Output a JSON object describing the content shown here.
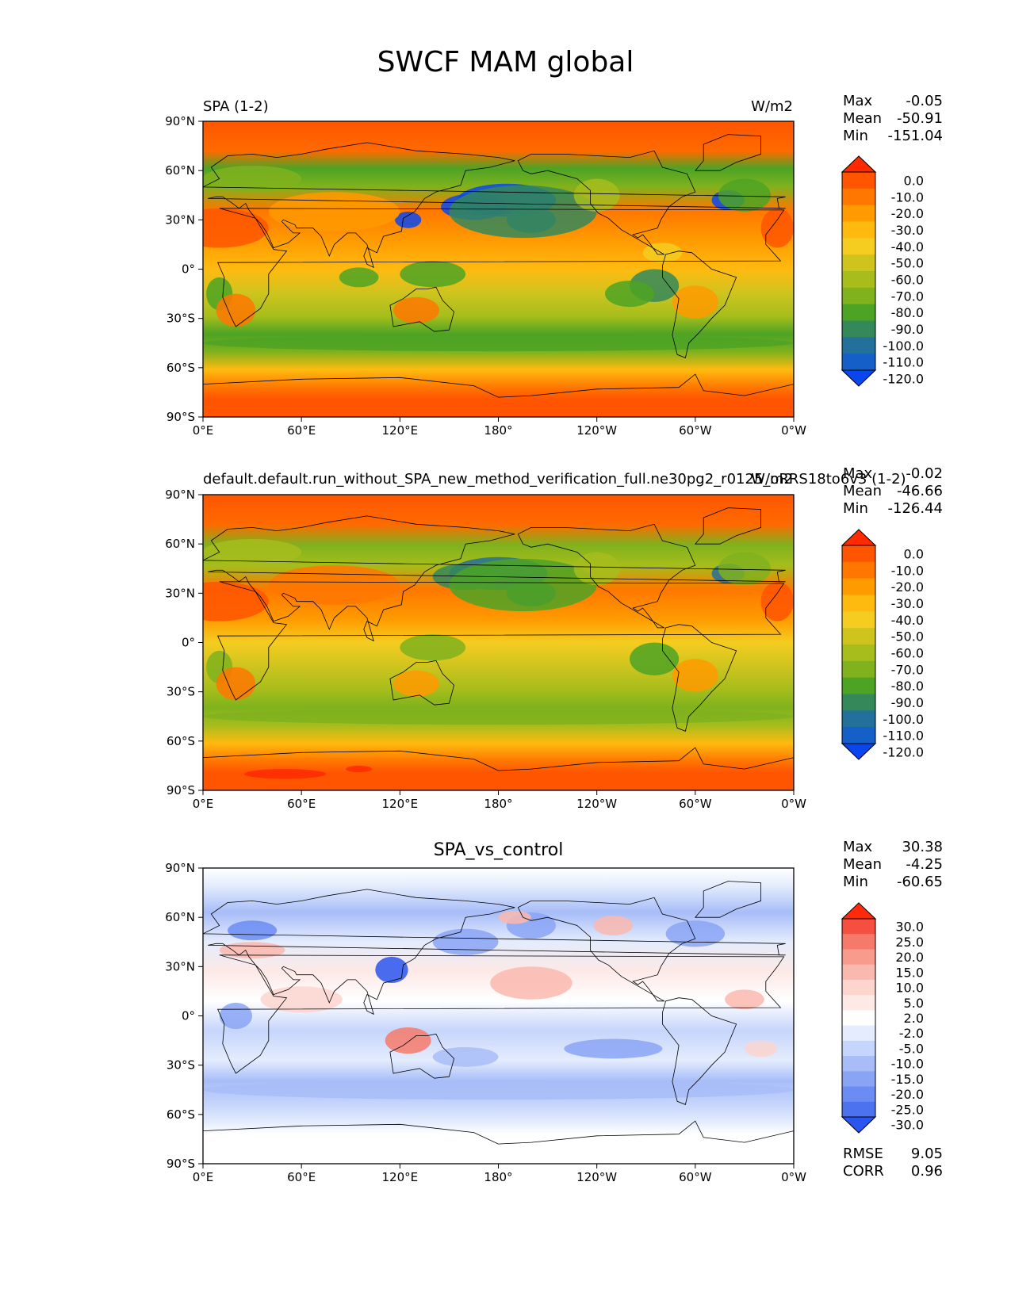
{
  "suptitle": "SWCF MAM global",
  "colorbars": {
    "swcf": {
      "levels": [
        "0.0",
        "-10.0",
        "-20.0",
        "-30.0",
        "-40.0",
        "-50.0",
        "-60.0",
        "-70.0",
        "-80.0",
        "-90.0",
        "-100.0",
        "-110.0",
        "-120.0"
      ],
      "colors": [
        "#ff2a00",
        "#ff5500",
        "#ff7700",
        "#ff9a00",
        "#ffba10",
        "#f5cc20",
        "#cfc41e",
        "#a6bd1c",
        "#7fb21d",
        "#4da324",
        "#34885a",
        "#23709a",
        "#1460c8",
        "#0a46f0"
      ]
    },
    "diff": {
      "levels": [
        "30.0",
        "25.0",
        "20.0",
        "15.0",
        "10.0",
        "5.0",
        "2.0",
        "-2.0",
        "-5.0",
        "-10.0",
        "-15.0",
        "-20.0",
        "-25.0",
        "-30.0"
      ],
      "colors": [
        "#ff2a0a",
        "#f5503f",
        "#f67a6a",
        "#f89a8c",
        "#fab9ae",
        "#fcd5cf",
        "#fde9e6",
        "#ffffff",
        "#e4ecfd",
        "#c6d5fb",
        "#a8bdf8",
        "#8aa4f5",
        "#6b8cf2",
        "#4d72ef",
        "#2a55ee"
      ]
    }
  },
  "panels": [
    {
      "id": "test",
      "title_left": "SPA (1-2)",
      "title_right": "W/m2",
      "title_center": "",
      "stats": [
        [
          "Max",
          "-0.05"
        ],
        [
          "Mean",
          "-50.91"
        ],
        [
          "Min",
          "-151.04"
        ]
      ],
      "extra_stats": [],
      "colorbar": "swcf"
    },
    {
      "id": "reference",
      "title_left": "default.default.run_without_SPA_new_method_verification_full.ne30pg2_r0125_oRRS18to6v3 (1-2)",
      "title_right": "W/m2",
      "title_center": "",
      "stats": [
        [
          "Max",
          "-0.02"
        ],
        [
          "Mean",
          "-46.66"
        ],
        [
          "Min",
          "-126.44"
        ]
      ],
      "extra_stats": [],
      "colorbar": "swcf"
    },
    {
      "id": "difference",
      "title_left": "",
      "title_right": "",
      "title_center": "SPA_vs_control",
      "stats": [
        [
          "Max",
          "30.38"
        ],
        [
          "Mean",
          "-4.25"
        ],
        [
          "Min",
          "-60.65"
        ]
      ],
      "extra_stats": [
        [
          "RMSE",
          "9.05"
        ],
        [
          "CORR",
          "0.96"
        ]
      ],
      "colorbar": "diff"
    }
  ],
  "axes": {
    "y_ticks": [
      "90°N",
      "60°N",
      "30°N",
      "0°",
      "30°S",
      "60°S",
      "90°S"
    ],
    "x_ticks": [
      "0°E",
      "60°E",
      "120°E",
      "180°",
      "120°W",
      "60°W",
      "0°W"
    ]
  },
  "chart_data": [
    {
      "type": "heatmap",
      "title": "SPA (1-2)",
      "units": "W/m2",
      "xlim": [
        0,
        360
      ],
      "ylim": [
        -90,
        90
      ],
      "stats": {
        "max": -0.05,
        "mean": -50.91,
        "min": -151.04
      },
      "color_levels": [
        0,
        -10,
        -20,
        -30,
        -40,
        -50,
        -60,
        -70,
        -80,
        -90,
        -100,
        -110,
        -120
      ]
    },
    {
      "type": "heatmap",
      "title": "default.default.run_without_SPA_new_method_verification_full.ne30pg2_r0125_oRRS18to6v3 (1-2)",
      "units": "W/m2",
      "xlim": [
        0,
        360
      ],
      "ylim": [
        -90,
        90
      ],
      "stats": {
        "max": -0.02,
        "mean": -46.66,
        "min": -126.44
      },
      "color_levels": [
        0,
        -10,
        -20,
        -30,
        -40,
        -50,
        -60,
        -70,
        -80,
        -90,
        -100,
        -110,
        -120
      ]
    },
    {
      "type": "heatmap",
      "title": "SPA_vs_control",
      "xlim": [
        0,
        360
      ],
      "ylim": [
        -90,
        90
      ],
      "stats": {
        "max": 30.38,
        "mean": -4.25,
        "min": -60.65,
        "rmse": 9.05,
        "corr": 0.96
      },
      "color_levels": [
        30,
        25,
        20,
        15,
        10,
        5,
        2,
        -2,
        -5,
        -10,
        -15,
        -20,
        -25,
        -30
      ]
    }
  ]
}
